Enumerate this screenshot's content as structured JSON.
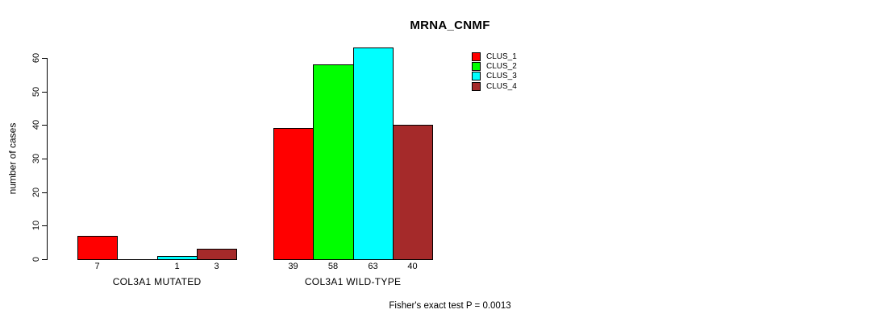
{
  "chart_data": {
    "type": "bar",
    "title": "MRNA_CNMF",
    "ylabel": "number of cases",
    "yticks": [
      0,
      10,
      20,
      30,
      40,
      50,
      60
    ],
    "axis_max": 60,
    "grid": false,
    "legend_position": "top-right",
    "legend": [
      {
        "name": "CLUS_1",
        "color": "#FF0000"
      },
      {
        "name": "CLUS_2",
        "color": "#00FF00"
      },
      {
        "name": "CLUS_3",
        "color": "#00FFFF"
      },
      {
        "name": "CLUS_4",
        "color": "#A52A2A"
      }
    ],
    "groups": [
      {
        "label": "COL3A1 MUTATED",
        "values": [
          7,
          0,
          1,
          3
        ],
        "value_labels": [
          "7",
          "",
          "1",
          "3"
        ]
      },
      {
        "label": "COL3A1 WILD-TYPE",
        "values": [
          39,
          58,
          63,
          40
        ],
        "value_labels": [
          "39",
          "58",
          "63",
          "40"
        ]
      }
    ],
    "annotation": "Fisher's exact test P = 0.0013"
  }
}
